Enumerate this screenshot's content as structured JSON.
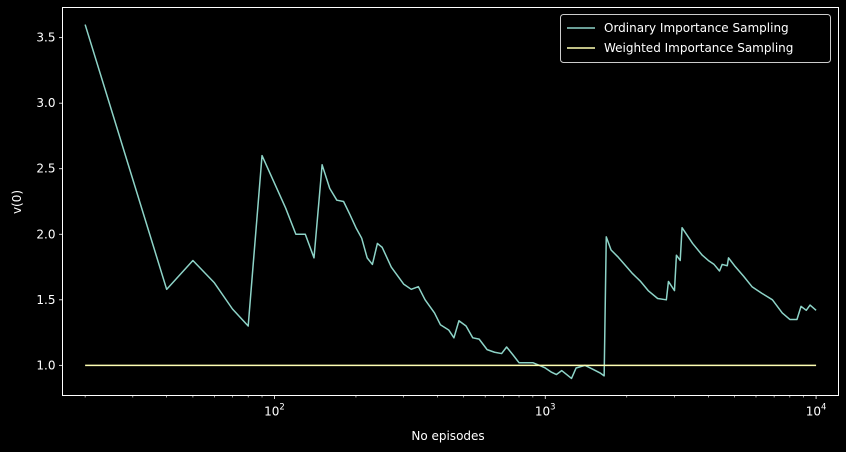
{
  "chart_data": {
    "type": "line",
    "xscale": "log",
    "xlabel": "No episodes",
    "ylabel": "v(0)",
    "xlim": [
      16.5,
      12100
    ],
    "ylim": [
      0.77,
      3.73
    ],
    "x_ticks": [
      {
        "value": 100,
        "base": "10",
        "exp": "2"
      },
      {
        "value": 1000,
        "base": "10",
        "exp": "3"
      },
      {
        "value": 10000,
        "base": "10",
        "exp": "4"
      }
    ],
    "y_ticks": [
      {
        "value": 1.0,
        "label": "1.0"
      },
      {
        "value": 1.5,
        "label": "1.5"
      },
      {
        "value": 2.0,
        "label": "2.0"
      },
      {
        "value": 2.5,
        "label": "2.5"
      },
      {
        "value": 3.0,
        "label": "3.0"
      },
      {
        "value": 3.5,
        "label": "3.5"
      }
    ],
    "grid": false,
    "legend_position": "top-right",
    "series": [
      {
        "name": "Ordinary Importance Sampling",
        "color": "#8dd3c7",
        "points": [
          [
            20,
            3.6
          ],
          [
            40,
            1.58
          ],
          [
            50,
            1.8
          ],
          [
            60,
            1.63
          ],
          [
            70,
            1.43
          ],
          [
            80,
            1.3
          ],
          [
            90,
            2.6
          ],
          [
            110,
            2.2
          ],
          [
            120,
            2.0
          ],
          [
            130,
            2.0
          ],
          [
            140,
            1.82
          ],
          [
            150,
            2.53
          ],
          [
            160,
            2.35
          ],
          [
            170,
            2.26
          ],
          [
            180,
            2.25
          ],
          [
            190,
            2.15
          ],
          [
            200,
            2.05
          ],
          [
            210,
            1.97
          ],
          [
            220,
            1.82
          ],
          [
            230,
            1.77
          ],
          [
            240,
            1.93
          ],
          [
            250,
            1.9
          ],
          [
            270,
            1.75
          ],
          [
            300,
            1.62
          ],
          [
            320,
            1.58
          ],
          [
            340,
            1.6
          ],
          [
            360,
            1.5
          ],
          [
            390,
            1.4
          ],
          [
            410,
            1.31
          ],
          [
            440,
            1.27
          ],
          [
            460,
            1.21
          ],
          [
            480,
            1.34
          ],
          [
            510,
            1.3
          ],
          [
            540,
            1.21
          ],
          [
            570,
            1.2
          ],
          [
            610,
            1.12
          ],
          [
            650,
            1.1
          ],
          [
            690,
            1.09
          ],
          [
            720,
            1.14
          ],
          [
            760,
            1.08
          ],
          [
            800,
            1.02
          ],
          [
            850,
            1.02
          ],
          [
            900,
            1.02
          ],
          [
            950,
            1.0
          ],
          [
            1000,
            0.98
          ],
          [
            1050,
            0.95
          ],
          [
            1100,
            0.93
          ],
          [
            1150,
            0.96
          ],
          [
            1200,
            0.93
          ],
          [
            1250,
            0.9
          ],
          [
            1300,
            0.98
          ],
          [
            1400,
            1.0
          ],
          [
            1500,
            0.97
          ],
          [
            1600,
            0.94
          ],
          [
            1650,
            0.92
          ],
          [
            1680,
            1.98
          ],
          [
            1750,
            1.88
          ],
          [
            1850,
            1.83
          ],
          [
            2000,
            1.75
          ],
          [
            2100,
            1.7
          ],
          [
            2250,
            1.64
          ],
          [
            2400,
            1.57
          ],
          [
            2600,
            1.51
          ],
          [
            2800,
            1.5
          ],
          [
            2850,
            1.64
          ],
          [
            3000,
            1.57
          ],
          [
            3050,
            1.84
          ],
          [
            3150,
            1.8
          ],
          [
            3200,
            2.05
          ],
          [
            3500,
            1.93
          ],
          [
            3800,
            1.84
          ],
          [
            4000,
            1.8
          ],
          [
            4200,
            1.77
          ],
          [
            4400,
            1.72
          ],
          [
            4500,
            1.77
          ],
          [
            4700,
            1.76
          ],
          [
            4750,
            1.82
          ],
          [
            5000,
            1.76
          ],
          [
            5400,
            1.68
          ],
          [
            5800,
            1.6
          ],
          [
            6300,
            1.55
          ],
          [
            6900,
            1.5
          ],
          [
            7500,
            1.4
          ],
          [
            8000,
            1.35
          ],
          [
            8500,
            1.35
          ],
          [
            8800,
            1.45
          ],
          [
            9200,
            1.42
          ],
          [
            9500,
            1.46
          ],
          [
            10000,
            1.42
          ]
        ]
      },
      {
        "name": "Weighted Importance Sampling",
        "color": "#ffffb3",
        "points": [
          [
            20,
            1.0
          ],
          [
            10000,
            1.0
          ]
        ]
      }
    ]
  }
}
